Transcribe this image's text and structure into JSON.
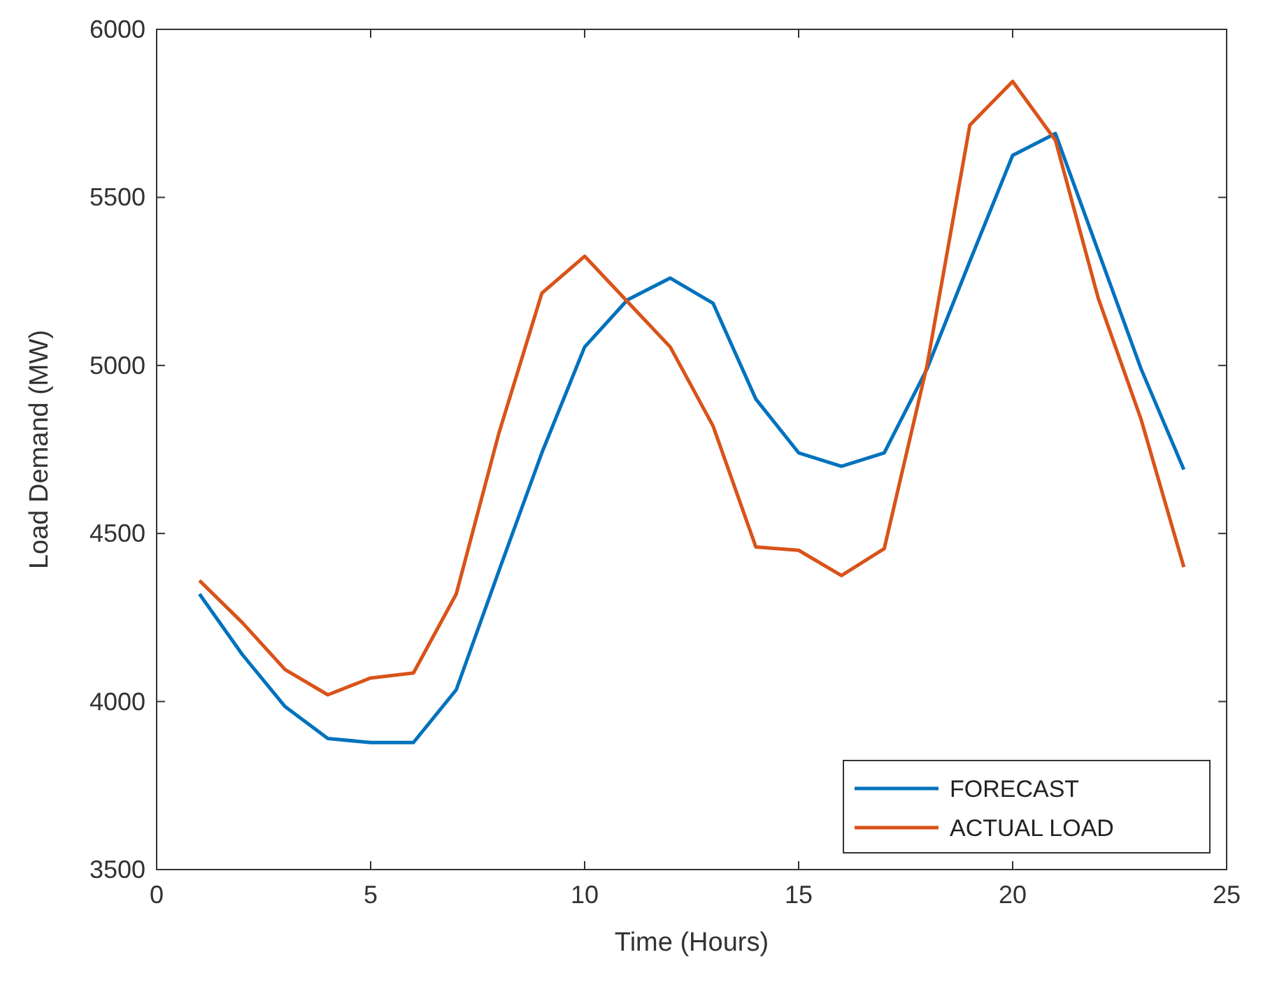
{
  "chart_data": {
    "type": "line",
    "xlabel": "Time (Hours)",
    "ylabel": "Load Demand (MW)",
    "x": [
      1,
      2,
      3,
      4,
      5,
      6,
      7,
      8,
      9,
      10,
      11,
      12,
      13,
      14,
      15,
      16,
      17,
      18,
      19,
      20,
      21,
      22,
      23,
      24
    ],
    "series": [
      {
        "name": "FORECAST",
        "color": "#0072bd",
        "values": [
          4320,
          4140,
          3985,
          3890,
          3878,
          3878,
          4035,
          4390,
          4740,
          5055,
          5195,
          5260,
          5185,
          4900,
          4740,
          4700,
          4740,
          4990,
          5310,
          5625,
          5690,
          5340,
          4990,
          4690
        ]
      },
      {
        "name": "ACTUAL LOAD",
        "color": "#d95319",
        "values": [
          4360,
          4235,
          4095,
          4020,
          4070,
          4085,
          4320,
          4800,
          5215,
          5325,
          5190,
          5055,
          4820,
          4460,
          4450,
          4375,
          4455,
          5000,
          5715,
          5845,
          5670,
          5200,
          4840,
          4400
        ]
      }
    ],
    "xlim": [
      0,
      25
    ],
    "xticks": [
      0,
      5,
      10,
      15,
      20,
      25
    ],
    "ylim": [
      3500,
      6000
    ],
    "yticks": [
      3500,
      4000,
      4500,
      5000,
      5500,
      6000
    ],
    "grid": false,
    "legend": "bottom right",
    "marker": "none",
    "line_style": "solid"
  }
}
